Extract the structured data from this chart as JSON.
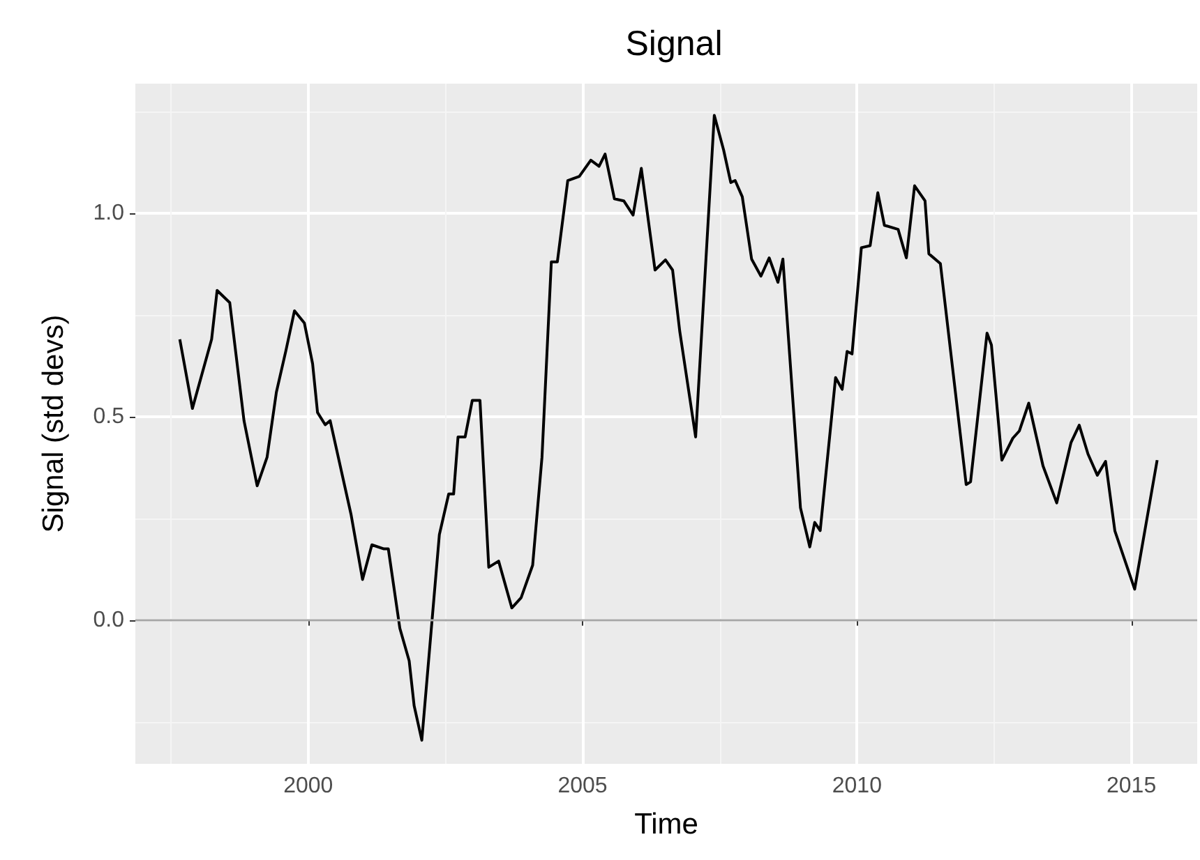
{
  "chart_data": {
    "type": "line",
    "title": "Signal",
    "xlabel": "Time",
    "ylabel": "Signal (std devs)",
    "x": [
      1997.66,
      1997.89,
      1998.24,
      1998.34,
      1998.57,
      1998.83,
      1999.07,
      1999.25,
      1999.42,
      1999.59,
      1999.75,
      1999.93,
      2000.08,
      2000.17,
      2000.31,
      2000.4,
      2000.78,
      2000.99,
      2001.16,
      2001.38,
      2001.46,
      2001.67,
      2001.84,
      2001.93,
      2002.07,
      2002.39,
      2002.56,
      2002.65,
      2002.73,
      2002.86,
      2002.99,
      2003.13,
      2003.29,
      2003.47,
      2003.71,
      2003.88,
      2004.09,
      2004.26,
      2004.43,
      2004.54,
      2004.73,
      2004.94,
      2005.15,
      2005.3,
      2005.41,
      2005.58,
      2005.75,
      2005.92,
      2006.07,
      2006.32,
      2006.51,
      2006.64,
      2006.77,
      2007.06,
      2007.4,
      2007.57,
      2007.7,
      2007.78,
      2007.91,
      2008.08,
      2008.25,
      2008.4,
      2008.56,
      2008.65,
      2008.97,
      2009.14,
      2009.23,
      2009.33,
      2009.61,
      2009.73,
      2009.82,
      2009.91,
      2010.08,
      2010.24,
      2010.38,
      2010.5,
      2010.75,
      2010.9,
      2011.05,
      2011.24,
      2011.31,
      2011.52,
      2011.99,
      2012.07,
      2012.37,
      2012.45,
      2012.64,
      2012.84,
      2012.96,
      2013.13,
      2013.39,
      2013.64,
      2013.9,
      2014.05,
      2014.21,
      2014.38,
      2014.53,
      2014.7,
      2015.06,
      2015.47
    ],
    "series": [
      {
        "color": "#000000",
        "values": [
          0.69,
          0.52,
          0.69,
          0.81,
          0.78,
          0.49,
          0.33,
          0.4,
          0.56,
          0.66,
          0.76,
          0.73,
          0.63,
          0.51,
          0.48,
          0.49,
          0.26,
          0.1,
          0.185,
          0.175,
          0.175,
          -0.02,
          -0.1,
          -0.21,
          -0.295,
          0.21,
          0.31,
          0.31,
          0.45,
          0.45,
          0.54,
          0.54,
          0.13,
          0.145,
          0.03,
          0.055,
          0.135,
          0.4,
          0.88,
          0.88,
          1.08,
          1.09,
          1.13,
          1.115,
          1.145,
          1.035,
          1.03,
          0.995,
          1.11,
          0.86,
          0.885,
          0.86,
          0.71,
          0.45,
          1.24,
          1.155,
          1.075,
          1.08,
          1.04,
          0.887,
          0.845,
          0.89,
          0.83,
          0.887,
          0.276,
          0.18,
          0.24,
          0.22,
          0.596,
          0.567,
          0.66,
          0.654,
          0.915,
          0.92,
          1.05,
          0.97,
          0.96,
          0.89,
          1.067,
          1.03,
          0.9,
          0.876,
          0.333,
          0.34,
          0.705,
          0.676,
          0.393,
          0.447,
          0.465,
          0.533,
          0.379,
          0.288,
          0.436,
          0.479,
          0.408,
          0.356,
          0.39,
          0.219,
          0.076,
          0.393
        ]
      }
    ],
    "xlim": [
      1996.85,
      2016.2
    ],
    "xticks": [
      2000,
      2005,
      2010,
      2015
    ],
    "ylim": [
      -0.353,
      1.318
    ],
    "yticks": [
      {
        "value": 0,
        "label": "0.0"
      },
      {
        "value": 0.5,
        "label": "0.5"
      },
      {
        "value": 1,
        "label": "1.0"
      }
    ],
    "ref_lines": [
      {
        "axis": "y",
        "value": 0,
        "color": "#a6a6a6"
      }
    ],
    "grid": true,
    "marker": "none",
    "line_style": "solid"
  }
}
